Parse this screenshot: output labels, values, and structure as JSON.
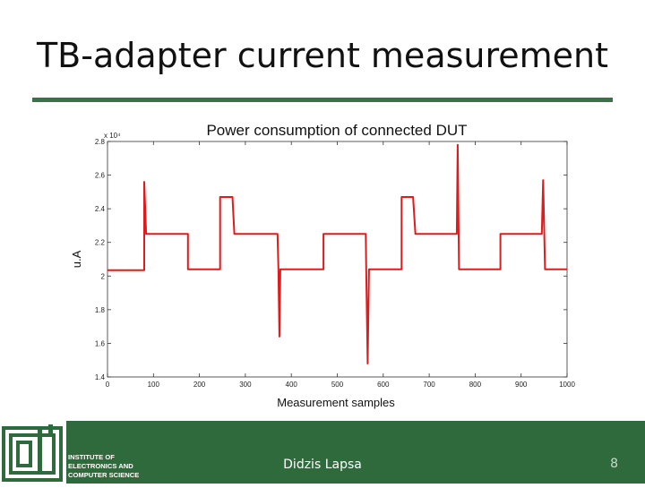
{
  "slide": {
    "title": "TB-adapter current measurement",
    "author": "Didzis Lapsa",
    "page_number": "8",
    "institute_lines": [
      "INSTITUTE OF",
      "ELECTRONICS AND",
      "COMPUTER SCIENCE"
    ],
    "accent_color": "#3f6f4a",
    "footer_color": "#2f6a3c"
  },
  "chart_data": {
    "type": "line",
    "title": "Power consumption of connected DUT",
    "xlabel": "Measurement samples",
    "ylabel": "u.A",
    "y_exponent_label": "x 10⁴",
    "xlim": [
      0,
      1000
    ],
    "ylim": [
      1.4,
      2.8
    ],
    "xticks": [
      0,
      100,
      200,
      300,
      400,
      500,
      600,
      700,
      800,
      900,
      1000
    ],
    "yticks": [
      1.4,
      1.6,
      1.8,
      2.0,
      2.2,
      2.4,
      2.6,
      2.8
    ],
    "ytick_labels": [
      "1.4",
      "1.6",
      "1.8",
      "2",
      "2.2",
      "2.4",
      "2.6",
      "2.8"
    ],
    "grid": false,
    "line_color": "#e01b1b",
    "series": [
      {
        "name": "",
        "values": [
          [
            0,
            2.035
          ],
          [
            80,
            2.035
          ],
          [
            80,
            2.56
          ],
          [
            84,
            2.25
          ],
          [
            175,
            2.25
          ],
          [
            175,
            2.04
          ],
          [
            245,
            2.04
          ],
          [
            245,
            2.47
          ],
          [
            272,
            2.47
          ],
          [
            276,
            2.25
          ],
          [
            370,
            2.25
          ],
          [
            372,
            2.04
          ],
          [
            374,
            1.64
          ],
          [
            376,
            2.04
          ],
          [
            470,
            2.04
          ],
          [
            470,
            2.25
          ],
          [
            562,
            2.25
          ],
          [
            563,
            2.04
          ],
          [
            566,
            1.48
          ],
          [
            569,
            2.04
          ],
          [
            640,
            2.04
          ],
          [
            640,
            2.47
          ],
          [
            665,
            2.47
          ],
          [
            670,
            2.25
          ],
          [
            760,
            2.25
          ],
          [
            762,
            2.78
          ],
          [
            765,
            2.04
          ],
          [
            855,
            2.04
          ],
          [
            855,
            2.25
          ],
          [
            945,
            2.25
          ],
          [
            948,
            2.57
          ],
          [
            952,
            2.04
          ],
          [
            1000,
            2.04
          ]
        ]
      }
    ]
  }
}
